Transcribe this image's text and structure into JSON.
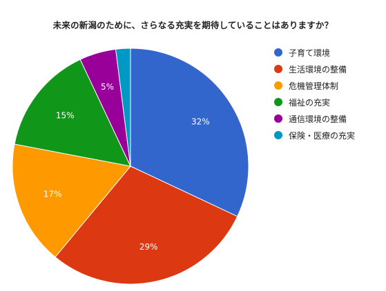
{
  "chart_data": {
    "type": "pie",
    "title": "未来の新潟のために、さらなる充実を期待していることはありますか？",
    "categories": [
      "子育て環境",
      "生活環境の整備",
      "危機管理体制",
      "福祉の充実",
      "通信環境の整備",
      "保険・医療の充実"
    ],
    "values": [
      32,
      29,
      17,
      15,
      5,
      2
    ],
    "labels": [
      "32%",
      "29%",
      "17%",
      "15%",
      "5%",
      ""
    ],
    "colors": [
      "#3366cc",
      "#dc3912",
      "#ff9900",
      "#109618",
      "#990099",
      "#0099c6"
    ],
    "legend_position": "right"
  }
}
